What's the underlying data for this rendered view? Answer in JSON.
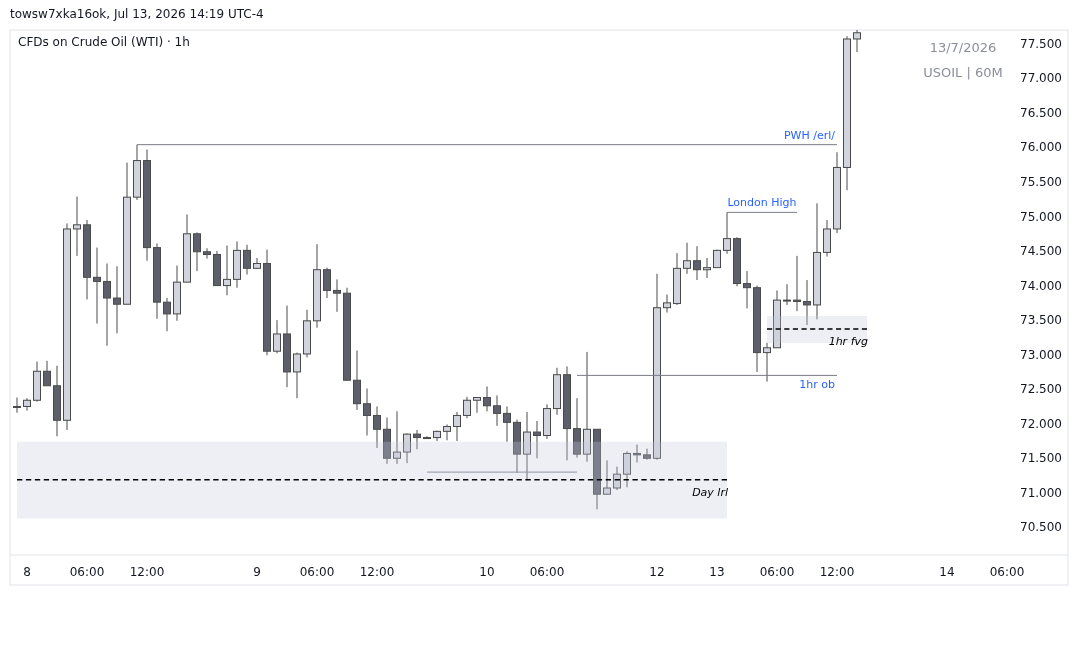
{
  "chart_data": {
    "type": "candlestick",
    "title": "CFDs on Crude Oil (WTI) · 1h",
    "annotations": [
      "towsw7xka16ok, Jul 13, 2026 14:19 UTC-4",
      "13/7/2026",
      "USOIL | 60M"
    ],
    "categories": [
      null,
      "8",
      null,
      null,
      null,
      null,
      null,
      "06:00",
      null,
      null,
      null,
      null,
      null,
      "12:00",
      null,
      null,
      null,
      null,
      null,
      null,
      null,
      null,
      null,
      null,
      "9",
      null,
      null,
      null,
      null,
      null,
      "06:00",
      null,
      null,
      null,
      null,
      null,
      "12:00",
      null,
      null,
      null,
      null,
      null,
      null,
      null,
      null,
      null,
      null,
      "10",
      null,
      null,
      null,
      null,
      null,
      "06:00",
      null,
      null,
      null,
      null,
      null,
      null,
      null,
      null,
      null,
      null,
      "12",
      null,
      null,
      null,
      null,
      null,
      "13",
      null,
      null,
      null,
      null,
      null,
      "06:00",
      null,
      null,
      null,
      null,
      null,
      "12:00",
      null,
      null,
      null,
      null,
      null,
      null,
      null,
      null,
      null,
      null,
      "14",
      null,
      null,
      null,
      null,
      null,
      "06:00"
    ],
    "ohlc": [
      [
        72.25,
        72.38,
        72.16,
        72.25
      ],
      [
        72.25,
        72.37,
        72.19,
        72.34
      ],
      [
        72.34,
        72.9,
        72.32,
        72.76
      ],
      [
        72.76,
        72.91,
        72.55,
        72.55
      ],
      [
        72.55,
        72.84,
        71.82,
        72.05
      ],
      [
        72.05,
        74.9,
        71.91,
        74.82
      ],
      [
        74.82,
        75.29,
        74.43,
        74.88
      ],
      [
        74.88,
        74.95,
        73.8,
        74.12
      ],
      [
        74.12,
        74.55,
        73.45,
        74.06
      ],
      [
        74.06,
        74.32,
        73.13,
        73.82
      ],
      [
        73.82,
        74.28,
        73.31,
        73.73
      ],
      [
        73.73,
        75.78,
        73.73,
        75.28
      ],
      [
        75.28,
        76.04,
        75.24,
        75.81
      ],
      [
        75.81,
        75.97,
        74.36,
        74.55
      ],
      [
        74.55,
        74.61,
        73.52,
        73.76
      ],
      [
        73.76,
        73.82,
        73.34,
        73.59
      ],
      [
        73.59,
        74.29,
        73.49,
        74.05
      ],
      [
        74.05,
        75.03,
        74.05,
        74.75
      ],
      [
        74.75,
        74.77,
        74.21,
        74.49
      ],
      [
        74.49,
        74.54,
        74.39,
        74.45
      ],
      [
        74.45,
        74.5,
        74.0,
        74.0
      ],
      [
        74.0,
        74.58,
        73.86,
        74.09
      ],
      [
        74.09,
        74.64,
        73.97,
        74.51
      ],
      [
        74.51,
        74.59,
        74.16,
        74.25
      ],
      [
        74.25,
        74.4,
        74.24,
        74.32
      ],
      [
        74.32,
        74.52,
        72.99,
        73.05
      ],
      [
        73.05,
        73.5,
        73.02,
        73.3
      ],
      [
        73.3,
        73.71,
        72.53,
        72.75
      ],
      [
        72.75,
        73.03,
        72.37,
        73.01
      ],
      [
        73.01,
        73.65,
        72.96,
        73.49
      ],
      [
        73.49,
        74.6,
        73.39,
        74.23
      ],
      [
        74.23,
        74.26,
        73.82,
        73.93
      ],
      [
        73.93,
        74.09,
        73.62,
        73.89
      ],
      [
        73.89,
        73.97,
        72.62,
        72.63
      ],
      [
        72.63,
        73.06,
        72.2,
        72.29
      ],
      [
        72.29,
        72.51,
        71.83,
        72.12
      ],
      [
        72.12,
        72.25,
        71.65,
        71.92
      ],
      [
        71.92,
        72.09,
        71.42,
        71.5
      ],
      [
        71.5,
        72.18,
        71.42,
        71.59
      ],
      [
        71.59,
        71.86,
        71.43,
        71.85
      ],
      [
        71.85,
        71.91,
        71.63,
        71.8
      ],
      [
        71.8,
        71.82,
        71.8,
        71.8
      ],
      [
        71.8,
        71.9,
        71.75,
        71.89
      ],
      [
        71.89,
        71.99,
        71.76,
        71.96
      ],
      [
        71.96,
        72.17,
        71.75,
        72.12
      ],
      [
        72.12,
        72.39,
        72.08,
        72.34
      ],
      [
        72.34,
        72.38,
        72.16,
        72.38
      ],
      [
        72.38,
        72.54,
        72.18,
        72.26
      ],
      [
        72.26,
        72.41,
        71.97,
        72.15
      ],
      [
        72.15,
        72.25,
        71.74,
        72.02
      ],
      [
        72.02,
        72.06,
        71.29,
        71.56
      ],
      [
        71.56,
        72.17,
        71.18,
        71.88
      ],
      [
        71.88,
        72.04,
        71.5,
        71.83
      ],
      [
        71.83,
        72.28,
        71.78,
        72.22
      ],
      [
        72.22,
        72.81,
        72.13,
        72.71
      ],
      [
        72.71,
        72.83,
        71.47,
        71.93
      ],
      [
        71.93,
        72.37,
        71.51,
        71.56
      ],
      [
        71.56,
        73.04,
        71.45,
        71.92
      ],
      [
        71.92,
        71.92,
        70.76,
        70.98
      ],
      [
        70.98,
        71.47,
        70.98,
        71.07
      ],
      [
        71.07,
        71.38,
        71.04,
        71.27
      ],
      [
        71.27,
        71.6,
        71.08,
        71.57
      ],
      [
        71.57,
        71.7,
        71.44,
        71.55
      ],
      [
        71.55,
        71.64,
        71.48,
        71.5
      ],
      [
        71.5,
        74.17,
        71.48,
        73.68
      ],
      [
        73.68,
        73.87,
        73.61,
        73.75
      ],
      [
        73.74,
        74.47,
        73.72,
        74.25
      ],
      [
        74.25,
        74.62,
        74.17,
        74.36
      ],
      [
        74.36,
        74.57,
        74.08,
        74.23
      ],
      [
        74.23,
        74.4,
        74.11,
        74.26
      ],
      [
        74.26,
        74.52,
        74.26,
        74.51
      ],
      [
        74.51,
        75.06,
        74.46,
        74.68
      ],
      [
        74.68,
        74.7,
        73.99,
        74.03
      ],
      [
        74.03,
        74.21,
        73.67,
        73.97
      ],
      [
        73.97,
        74.0,
        72.75,
        73.03
      ],
      [
        73.03,
        73.17,
        72.61,
        73.1
      ],
      [
        73.1,
        73.93,
        73.1,
        73.79
      ],
      [
        73.79,
        74.02,
        73.72,
        73.79
      ],
      [
        73.79,
        74.43,
        73.63,
        73.77
      ],
      [
        73.77,
        74.08,
        73.43,
        73.72
      ],
      [
        73.72,
        75.19,
        73.51,
        74.48
      ],
      [
        74.48,
        74.95,
        74.42,
        74.82
      ],
      [
        74.82,
        75.93,
        74.76,
        75.71
      ],
      [
        75.71,
        77.61,
        75.38,
        77.57
      ],
      [
        77.57,
        77.7,
        77.38,
        77.66
      ],
      null,
      null,
      null,
      null,
      null,
      null,
      null,
      null,
      null,
      null,
      null,
      null,
      null,
      null,
      null
    ],
    "colors": [
      "#d1d4dc",
      "#d1d4dc",
      "#d1d4dc",
      "#5d606b",
      "#5d606b",
      "#d1d4dc",
      "#d1d4dc",
      "#5d606b",
      "#5d606b",
      "#5d606b",
      "#5d606b",
      "#d1d4dc",
      "#d1d4dc",
      "#5d606b",
      "#5d606b",
      "#5d606b",
      "#d1d4dc",
      "#d1d4dc",
      "#5d606b",
      "#5d606b",
      "#5d606b",
      "#d1d4dc",
      "#d1d4dc",
      "#5d606b",
      "#d1d4dc",
      "#5d606b",
      "#d1d4dc",
      "#5d606b",
      "#d1d4dc",
      "#d1d4dc",
      "#d1d4dc",
      "#5d606b",
      "#5d606b",
      "#5d606b",
      "#5d606b",
      "#5d606b",
      "#5d606b",
      "#5d606b",
      "#d1d4dc",
      "#d1d4dc",
      "#5d606b",
      "#5d606b",
      "#d1d4dc",
      "#d1d4dc",
      "#d1d4dc",
      "#d1d4dc",
      "#d1d4dc",
      "#5d606b",
      "#5d606b",
      "#5d606b",
      "#5d606b",
      "#d1d4dc",
      "#5d606b",
      "#d1d4dc",
      "#d1d4dc",
      "#5d606b",
      "#5d606b",
      "#d1d4dc",
      "#5d606b",
      "#d1d4dc",
      "#d1d4dc",
      "#d1d4dc",
      "#5d606b",
      "#5d606b",
      "#d1d4dc",
      "#d1d4dc",
      "#d1d4dc",
      "#d1d4dc",
      "#5d606b",
      "#d1d4dc",
      "#d1d4dc",
      "#d1d4dc",
      "#5d606b",
      "#5d606b",
      "#5d606b",
      "#d1d4dc",
      "#d1d4dc",
      "#d1d4dc",
      "#5d606b",
      "#5d606b",
      "#d1d4dc",
      "#d1d4dc",
      "#d1d4dc",
      "#d1d4dc",
      "#d1d4dc",
      null,
      null,
      null,
      null,
      null,
      null,
      null,
      null,
      null,
      null,
      null,
      null,
      null,
      null,
      null
    ],
    "ylim": [
      70.1,
      77.7
    ],
    "yticks": [
      {
        "value": 70.5,
        "label": "70.500"
      },
      {
        "value": 71,
        "label": "71.000"
      },
      {
        "value": 71.5,
        "label": "71.500"
      },
      {
        "value": 72,
        "label": "72.000"
      },
      {
        "value": 72.5,
        "label": "72.500"
      },
      {
        "value": 73,
        "label": "73.000"
      },
      {
        "value": 73.5,
        "label": "73.500"
      },
      {
        "value": 74,
        "label": "74.000"
      },
      {
        "value": 74.5,
        "label": "74.500"
      },
      {
        "value": 75,
        "label": "75.000"
      },
      {
        "value": 75.5,
        "label": "75.500"
      },
      {
        "value": 76,
        "label": "76.000"
      },
      {
        "value": 76.5,
        "label": "76.500"
      },
      {
        "value": 77,
        "label": "77.000"
      },
      {
        "value": 77.5,
        "label": "77.500"
      }
    ],
    "series": [
      {
        "type": "line",
        "name": "PWH /erl/",
        "color": "#787b86",
        "line_style": "solid",
        "values": [
          null,
          null,
          null,
          null,
          null,
          null,
          null,
          null,
          null,
          null,
          null,
          null,
          76.04,
          76.04,
          76.04,
          76.04,
          76.04,
          76.04,
          76.04,
          76.04,
          76.04,
          76.04,
          76.04,
          76.04,
          76.04,
          76.04,
          76.04,
          76.04,
          76.04,
          76.04,
          76.04,
          76.04,
          76.04,
          76.04,
          76.04,
          76.04,
          76.04,
          76.04,
          76.04,
          76.04,
          76.04,
          76.04,
          76.04,
          76.04,
          76.04,
          76.04,
          76.04,
          76.04,
          76.04,
          76.04,
          76.04,
          76.04,
          76.04,
          76.04,
          76.04,
          76.04,
          76.04,
          76.04,
          76.04,
          76.04,
          76.04,
          76.04,
          76.04,
          76.04,
          76.04,
          76.04,
          76.04,
          76.04,
          76.04,
          76.04,
          76.04,
          76.04,
          76.04,
          76.04,
          76.04,
          76.04,
          76.04,
          76.04,
          76.04,
          76.04,
          76.04,
          76.04,
          76.04,
          null,
          null,
          null,
          null,
          null,
          null,
          null,
          null,
          null,
          null,
          null,
          null,
          null,
          null,
          null,
          null,
          null
        ]
      },
      {
        "type": "line",
        "name": "London High",
        "color": "#787b86",
        "line_style": "solid",
        "values": [
          null,
          null,
          null,
          null,
          null,
          null,
          null,
          null,
          null,
          null,
          null,
          null,
          null,
          null,
          null,
          null,
          null,
          null,
          null,
          null,
          null,
          null,
          null,
          null,
          null,
          null,
          null,
          null,
          null,
          null,
          null,
          null,
          null,
          null,
          null,
          null,
          null,
          null,
          null,
          null,
          null,
          null,
          null,
          null,
          null,
          null,
          null,
          null,
          null,
          null,
          null,
          null,
          null,
          null,
          null,
          null,
          null,
          null,
          null,
          null,
          null,
          null,
          null,
          null,
          null,
          null,
          null,
          null,
          null,
          null,
          null,
          75.06,
          75.06,
          75.06,
          75.06,
          75.06,
          75.06,
          75.06,
          75.06,
          null,
          null,
          null,
          null,
          null,
          null,
          null,
          null,
          null,
          null,
          null,
          null,
          null,
          null,
          null,
          null,
          null,
          null,
          null,
          null,
          null
        ]
      },
      {
        "type": "line",
        "name": "1hr ob",
        "color": "#787b86",
        "line_style": "solid",
        "values": [
          null,
          null,
          null,
          null,
          null,
          null,
          null,
          null,
          null,
          null,
          null,
          null,
          null,
          null,
          null,
          null,
          null,
          null,
          null,
          null,
          null,
          null,
          null,
          null,
          null,
          null,
          null,
          null,
          null,
          null,
          null,
          null,
          null,
          null,
          null,
          null,
          null,
          null,
          null,
          null,
          null,
          null,
          null,
          null,
          null,
          null,
          null,
          null,
          null,
          null,
          null,
          null,
          null,
          null,
          null,
          null,
          72.7,
          72.7,
          72.7,
          72.7,
          72.7,
          72.7,
          72.7,
          72.7,
          72.7,
          72.7,
          72.7,
          72.7,
          72.7,
          72.7,
          72.7,
          72.7,
          72.7,
          72.7,
          72.7,
          72.7,
          72.7,
          72.7,
          72.7,
          72.7,
          72.7,
          72.7,
          72.7,
          null,
          null,
          null,
          null,
          null,
          null,
          null,
          null,
          null,
          null,
          null,
          null,
          null,
          null,
          null,
          null,
          null
        ]
      },
      {
        "type": "line",
        "color": "#787b86",
        "line_style": "solid",
        "values": [
          null,
          null,
          null,
          null,
          null,
          null,
          null,
          null,
          null,
          null,
          null,
          null,
          null,
          null,
          null,
          null,
          null,
          null,
          null,
          null,
          null,
          null,
          null,
          null,
          null,
          null,
          null,
          null,
          null,
          null,
          null,
          null,
          null,
          null,
          null,
          null,
          null,
          null,
          null,
          null,
          null,
          71.3,
          71.3,
          71.3,
          71.3,
          71.3,
          71.3,
          71.3,
          71.3,
          71.3,
          71.3,
          71.3,
          71.3,
          71.3,
          71.3,
          71.3,
          71.3,
          null,
          null,
          null,
          null,
          null,
          null,
          null,
          null,
          null,
          null,
          null,
          null,
          null,
          null,
          null,
          null,
          null,
          null,
          null,
          null,
          null,
          null,
          null,
          null,
          null,
          null,
          null,
          null,
          null,
          null,
          null,
          null,
          null,
          null,
          null,
          null,
          null,
          null,
          null,
          null,
          null,
          null,
          null
        ]
      },
      {
        "type": "line",
        "name": "Day lrl",
        "color": "#000000",
        "line_style": "dashed",
        "values": [
          71.19,
          71.19,
          71.19,
          71.19,
          71.19,
          71.19,
          71.19,
          71.19,
          71.19,
          71.19,
          71.19,
          71.19,
          71.19,
          71.19,
          71.19,
          71.19,
          71.19,
          71.19,
          71.19,
          71.19,
          71.19,
          71.19,
          71.19,
          71.19,
          71.19,
          71.19,
          71.19,
          71.19,
          71.19,
          71.19,
          71.19,
          71.19,
          71.19,
          71.19,
          71.19,
          71.19,
          71.19,
          71.19,
          71.19,
          71.19,
          71.19,
          71.19,
          71.19,
          71.19,
          71.19,
          71.19,
          71.19,
          71.19,
          71.19,
          71.19,
          71.19,
          71.19,
          71.19,
          71.19,
          71.19,
          71.19,
          71.19,
          71.19,
          71.19,
          71.19,
          71.19,
          71.19,
          71.19,
          71.19,
          71.19,
          71.19,
          71.19,
          71.19,
          71.19,
          71.19,
          71.19,
          71.19,
          null,
          null,
          null,
          null,
          null,
          null,
          null,
          null,
          null,
          null,
          null,
          null,
          null,
          null,
          null,
          null,
          null,
          null,
          null,
          null,
          null,
          null,
          null,
          null,
          null,
          null,
          null,
          null
        ],
        "lower": [
          70.63,
          70.63,
          70.63,
          70.63,
          70.63,
          70.63,
          70.63,
          70.63,
          70.63,
          70.63,
          70.63,
          70.63,
          70.63,
          70.63,
          70.63,
          70.63,
          70.63,
          70.63,
          70.63,
          70.63,
          70.63,
          70.63,
          70.63,
          70.63,
          70.63,
          70.63,
          70.63,
          70.63,
          70.63,
          70.63,
          70.63,
          70.63,
          70.63,
          70.63,
          70.63,
          70.63,
          70.63,
          70.63,
          70.63,
          70.63,
          70.63,
          70.63,
          70.63,
          70.63,
          70.63,
          70.63,
          70.63,
          70.63,
          70.63,
          70.63,
          70.63,
          70.63,
          70.63,
          70.63,
          70.63,
          70.63,
          70.63,
          70.63,
          70.63,
          70.63,
          70.63,
          70.63,
          70.63,
          70.63,
          70.63,
          70.63,
          70.63,
          70.63,
          70.63,
          70.63,
          70.63,
          70.63,
          null,
          null,
          null,
          null,
          null,
          null,
          null,
          null,
          null,
          null,
          null,
          null,
          null,
          null,
          null,
          null,
          null,
          null,
          null,
          null,
          null,
          null,
          null,
          null,
          null,
          null,
          null,
          null
        ],
        "upper": [
          71.74,
          71.74,
          71.74,
          71.74,
          71.74,
          71.74,
          71.74,
          71.74,
          71.74,
          71.74,
          71.74,
          71.74,
          71.74,
          71.74,
          71.74,
          71.74,
          71.74,
          71.74,
          71.74,
          71.74,
          71.74,
          71.74,
          71.74,
          71.74,
          71.74,
          71.74,
          71.74,
          71.74,
          71.74,
          71.74,
          71.74,
          71.74,
          71.74,
          71.74,
          71.74,
          71.74,
          71.74,
          71.74,
          71.74,
          71.74,
          71.74,
          71.74,
          71.74,
          71.74,
          71.74,
          71.74,
          71.74,
          71.74,
          71.74,
          71.74,
          71.74,
          71.74,
          71.74,
          71.74,
          71.74,
          71.74,
          71.74,
          71.74,
          71.74,
          71.74,
          71.74,
          71.74,
          71.74,
          71.74,
          71.74,
          71.74,
          71.74,
          71.74,
          71.74,
          71.74,
          71.74,
          71.74,
          null,
          null,
          null,
          null,
          null,
          null,
          null,
          null,
          null,
          null,
          null,
          null,
          null,
          null,
          null,
          null,
          null,
          null,
          null,
          null,
          null,
          null,
          null,
          null,
          null,
          null,
          null,
          null
        ]
      },
      {
        "type": "line",
        "name": "1hr fvg",
        "color": "#000000",
        "line_style": "dashed",
        "values": [
          null,
          null,
          null,
          null,
          null,
          null,
          null,
          null,
          null,
          null,
          null,
          null,
          null,
          null,
          null,
          null,
          null,
          null,
          null,
          null,
          null,
          null,
          null,
          null,
          null,
          null,
          null,
          null,
          null,
          null,
          null,
          null,
          null,
          null,
          null,
          null,
          null,
          null,
          null,
          null,
          null,
          null,
          null,
          null,
          null,
          null,
          null,
          null,
          null,
          null,
          null,
          null,
          null,
          null,
          null,
          null,
          null,
          null,
          null,
          null,
          null,
          null,
          null,
          null,
          null,
          null,
          null,
          null,
          null,
          null,
          null,
          null,
          null,
          null,
          null,
          73.37,
          73.37,
          73.37,
          73.37,
          73.37,
          73.37,
          73.37,
          73.37,
          73.37,
          73.37,
          73.37,
          null,
          null,
          null,
          null,
          null,
          null,
          null,
          null,
          null,
          null,
          null,
          null,
          null,
          null
        ],
        "lower": [
          null,
          null,
          null,
          null,
          null,
          null,
          null,
          null,
          null,
          null,
          null,
          null,
          null,
          null,
          null,
          null,
          null,
          null,
          null,
          null,
          null,
          null,
          null,
          null,
          null,
          null,
          null,
          null,
          null,
          null,
          null,
          null,
          null,
          null,
          null,
          null,
          null,
          null,
          null,
          null,
          null,
          null,
          null,
          null,
          null,
          null,
          null,
          null,
          null,
          null,
          null,
          null,
          null,
          null,
          null,
          null,
          null,
          null,
          null,
          null,
          null,
          null,
          null,
          null,
          null,
          null,
          null,
          null,
          null,
          null,
          null,
          null,
          null,
          null,
          null,
          73.17,
          73.17,
          73.17,
          73.17,
          73.17,
          73.17,
          73.17,
          73.17,
          73.17,
          73.17,
          73.17,
          null,
          null,
          null,
          null,
          null,
          null,
          null,
          null,
          null,
          null,
          null,
          null,
          null,
          null
        ],
        "upper": [
          null,
          null,
          null,
          null,
          null,
          null,
          null,
          null,
          null,
          null,
          null,
          null,
          null,
          null,
          null,
          null,
          null,
          null,
          null,
          null,
          null,
          null,
          null,
          null,
          null,
          null,
          null,
          null,
          null,
          null,
          null,
          null,
          null,
          null,
          null,
          null,
          null,
          null,
          null,
          null,
          null,
          null,
          null,
          null,
          null,
          null,
          null,
          null,
          null,
          null,
          null,
          null,
          null,
          null,
          null,
          null,
          null,
          null,
          null,
          null,
          null,
          null,
          null,
          null,
          null,
          null,
          null,
          null,
          null,
          null,
          null,
          null,
          null,
          null,
          null,
          73.56,
          73.56,
          73.56,
          73.56,
          73.56,
          73.56,
          73.56,
          73.56,
          73.56,
          73.56,
          73.56,
          null,
          null,
          null,
          null,
          null,
          null,
          null,
          null,
          null,
          null,
          null,
          null,
          null,
          null
        ]
      }
    ]
  }
}
